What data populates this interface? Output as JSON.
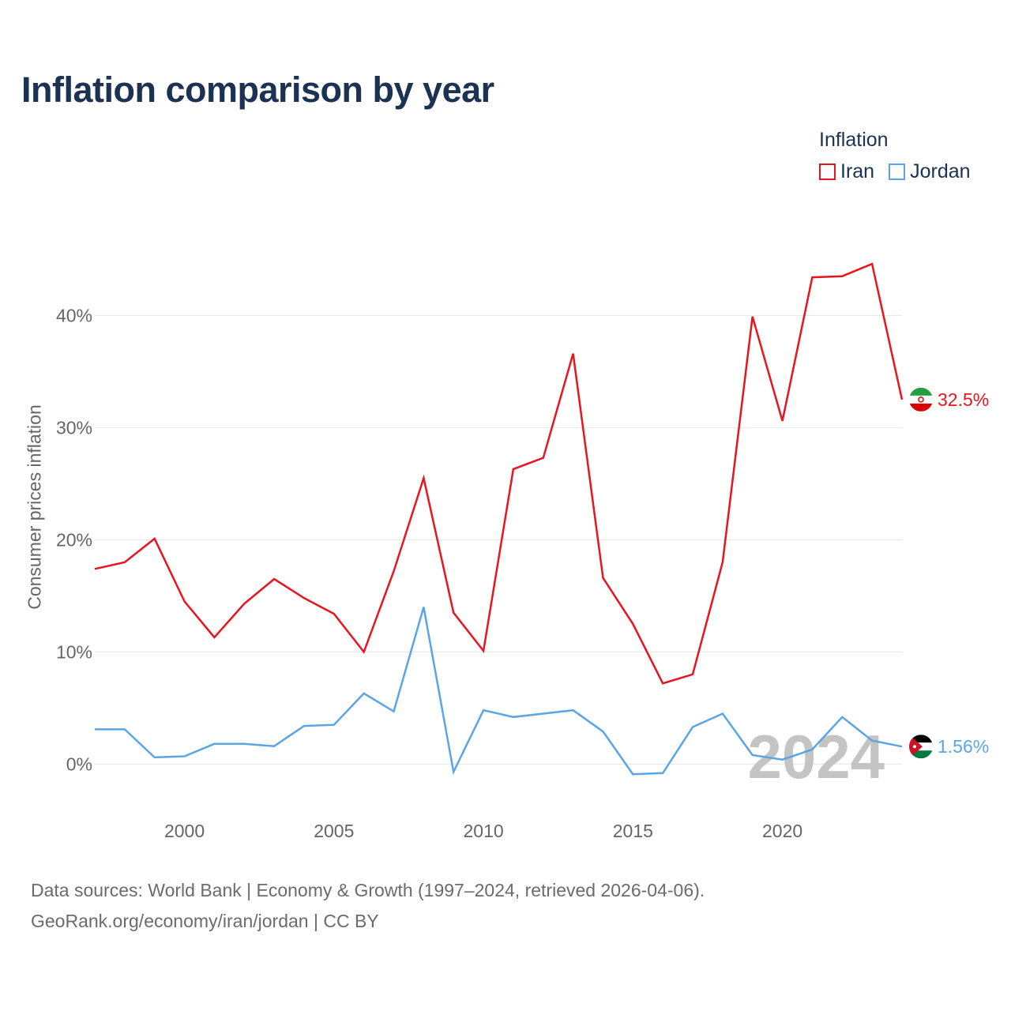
{
  "title": "Inflation comparison by year",
  "legend": {
    "title": "Inflation",
    "items": [
      {
        "label": "Iran",
        "color": "#e8141e"
      },
      {
        "label": "Jordan",
        "color": "#5aa5e6"
      }
    ]
  },
  "source": {
    "line1": "Data sources: World Bank | Economy & Growth (1997–2024, retrieved 2026-04-06).",
    "line2": "GeoRank.org/economy/iran/jordan | CC BY"
  },
  "chart_data": {
    "type": "line",
    "title": "Inflation comparison by year",
    "xlabel": "",
    "ylabel": "Consumer prices inflation",
    "xlim": [
      1997,
      2024
    ],
    "ylim": [
      -3,
      47
    ],
    "x_ticks": [
      2000,
      2005,
      2010,
      2015,
      2020
    ],
    "x_tick_labels": [
      "2000",
      "2005",
      "2010",
      "2015",
      "2020"
    ],
    "y_ticks": [
      0,
      10,
      20,
      30,
      40
    ],
    "y_tick_labels": [
      "0%",
      "10%",
      "20%",
      "30%",
      "40%"
    ],
    "grid": true,
    "current_year_watermark": "2024",
    "x": [
      1997,
      1998,
      1999,
      2000,
      2001,
      2002,
      2003,
      2004,
      2005,
      2006,
      2007,
      2008,
      2009,
      2010,
      2011,
      2012,
      2013,
      2014,
      2015,
      2016,
      2017,
      2018,
      2019,
      2020,
      2021,
      2022,
      2023,
      2024
    ],
    "series": [
      {
        "name": "Iran",
        "color": "#e8141e",
        "end_label": "32.5%",
        "flag": "iran-flag",
        "values": [
          17.4,
          18.0,
          20.1,
          14.5,
          11.3,
          14.3,
          16.5,
          14.8,
          13.4,
          10.0,
          17.2,
          25.5,
          13.5,
          10.1,
          26.3,
          27.3,
          36.6,
          16.6,
          12.5,
          7.2,
          8.0,
          18.0,
          39.9,
          30.6,
          43.4,
          43.5,
          44.6,
          32.5
        ]
      },
      {
        "name": "Jordan",
        "color": "#5aa5e6",
        "end_label": "1.56%",
        "flag": "jordan-flag",
        "values": [
          3.1,
          3.1,
          0.6,
          0.7,
          1.8,
          1.8,
          1.6,
          3.4,
          3.5,
          6.3,
          4.7,
          14.0,
          -0.7,
          4.8,
          4.2,
          4.5,
          4.8,
          2.9,
          -0.9,
          -0.8,
          3.3,
          4.5,
          0.8,
          0.4,
          1.3,
          4.2,
          2.1,
          1.56
        ]
      }
    ]
  }
}
